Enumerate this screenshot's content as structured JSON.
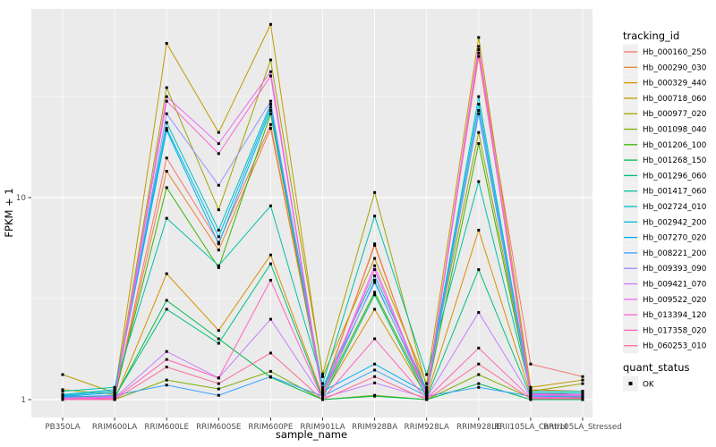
{
  "figure": {
    "background": "#FFFFFF",
    "panel_background": "#EBEBEB",
    "grid_color": "#FFFFFF",
    "tick_color": "#333333",
    "tick_label_color": "#4D4D4D",
    "axis_title_color": "#000000",
    "legend_key_fill": "#F0F0F0"
  },
  "legend": {
    "tracking_title": "tracking_id",
    "quant_title": "quant_status",
    "quant_items": [
      {
        "label": "OK",
        "marker": "black-square"
      }
    ]
  },
  "chart_data": {
    "type": "line",
    "title": "",
    "xlabel": "sample_name",
    "ylabel": "FPKM + 1",
    "y_scale": "log10",
    "y_ticks": [
      1,
      10
    ],
    "ylim": [
      0.93,
      90
    ],
    "grid": true,
    "legend_position": "right",
    "marker": {
      "shape": "square",
      "color": "#000000",
      "meaning": "quant_status OK"
    },
    "categories": [
      "PB350LA",
      "RRIM600LA",
      "RRIM600LE",
      "RRIM600SE",
      "RRIM600PE",
      "RRIM901LA",
      "RRIM928BA",
      "RRIM928LA",
      "RRIM928LE",
      "RRII105LA_Control",
      "RRII105LA_Stressed"
    ],
    "series": [
      {
        "name": "Hb_000160_250",
        "color": "#F8766D",
        "values": [
          1.05,
          1.02,
          15.7,
          6.0,
          23,
          1.08,
          5.9,
          1.08,
          54,
          1.5,
          1.3
        ]
      },
      {
        "name": "Hb_000290_030",
        "color": "#EA8331",
        "values": [
          1.04,
          1.02,
          13.5,
          5.5,
          22,
          1.1,
          5.8,
          1.1,
          50,
          1.12,
          1.1
        ]
      },
      {
        "name": "Hb_000329_440",
        "color": "#D89000",
        "values": [
          1.02,
          1.0,
          4.2,
          2.2,
          5.2,
          1.04,
          2.8,
          1.04,
          6.9,
          1.06,
          1.05
        ]
      },
      {
        "name": "Hb_000718_060",
        "color": "#C09B00",
        "values": [
          1.33,
          1.08,
          58,
          21,
          72,
          1.3,
          5.0,
          1.2,
          62,
          1.15,
          1.25
        ]
      },
      {
        "name": "Hb_000977_020",
        "color": "#A3A500",
        "values": [
          1.12,
          1.06,
          35,
          8.7,
          48,
          1.34,
          10.6,
          1.15,
          21,
          1.1,
          1.2
        ]
      },
      {
        "name": "Hb_001098_040",
        "color": "#7CAE00",
        "values": [
          1.0,
          1.0,
          1.25,
          1.13,
          1.38,
          1.0,
          1.05,
          1.0,
          1.33,
          1.02,
          1.02
        ]
      },
      {
        "name": "Hb_001206_100",
        "color": "#39B600",
        "values": [
          1.03,
          1.04,
          11.2,
          4.5,
          26,
          1.06,
          3.4,
          1.06,
          18.5,
          1.08,
          1.06
        ]
      },
      {
        "name": "Hb_001268_150",
        "color": "#00BB4E",
        "values": [
          1.0,
          1.02,
          3.1,
          2.0,
          1.29,
          1.0,
          1.04,
          1.0,
          1.2,
          1.0,
          1.0
        ]
      },
      {
        "name": "Hb_001296_060",
        "color": "#00BF7D",
        "values": [
          1.02,
          1.03,
          2.8,
          1.9,
          4.7,
          1.02,
          3.3,
          1.02,
          4.4,
          1.04,
          1.03
        ]
      },
      {
        "name": "Hb_001417_060",
        "color": "#00C1A3",
        "values": [
          1.1,
          1.15,
          7.9,
          4.6,
          9.1,
          1.2,
          8.1,
          1.33,
          12,
          1.1,
          1.1
        ]
      },
      {
        "name": "Hb_002724_010",
        "color": "#00BFC4",
        "values": [
          1.06,
          1.12,
          23.5,
          6.9,
          29,
          1.15,
          4.1,
          1.12,
          31.6,
          1.08,
          1.08
        ]
      },
      {
        "name": "Hb_002942_200",
        "color": "#00BAE0",
        "values": [
          1.05,
          1.1,
          22,
          6.4,
          28,
          1.12,
          3.8,
          1.1,
          29,
          1.06,
          1.06
        ]
      },
      {
        "name": "Hb_007270_020",
        "color": "#00B0F6",
        "values": [
          1.04,
          1.08,
          21.5,
          5.9,
          27,
          1.1,
          1.5,
          1.08,
          26,
          1.05,
          1.05
        ]
      },
      {
        "name": "Hb_008221_200",
        "color": "#35A2FF",
        "values": [
          1.03,
          1.05,
          1.18,
          1.05,
          1.3,
          1.04,
          1.4,
          1.04,
          1.15,
          1.04,
          1.04
        ]
      },
      {
        "name": "Hb_009393_090",
        "color": "#9590FF",
        "values": [
          1.02,
          1.03,
          26,
          11.5,
          30,
          1.05,
          3.9,
          1.05,
          27,
          1.05,
          1.04
        ]
      },
      {
        "name": "Hb_009421_070",
        "color": "#C77CFF",
        "values": [
          1.0,
          1.02,
          1.73,
          1.28,
          2.5,
          1.02,
          1.21,
          1.02,
          2.7,
          1.03,
          1.02
        ]
      },
      {
        "name": "Hb_009522_020",
        "color": "#E76BF3",
        "values": [
          1.01,
          1.04,
          31.6,
          18.5,
          42,
          1.06,
          4.6,
          1.06,
          56,
          1.07,
          1.06
        ]
      },
      {
        "name": "Hb_013394_120",
        "color": "#FA62DB",
        "values": [
          1.01,
          1.02,
          30,
          16.5,
          40,
          1.05,
          4.4,
          1.05,
          52,
          1.06,
          1.05
        ]
      },
      {
        "name": "Hb_017358_020",
        "color": "#FF62BC",
        "values": [
          1.0,
          1.01,
          1.58,
          1.28,
          3.9,
          1.01,
          2.0,
          1.01,
          1.8,
          1.02,
          1.02
        ]
      },
      {
        "name": "Hb_060253_010",
        "color": "#FF6A98",
        "values": [
          1.0,
          1.0,
          1.45,
          1.2,
          1.7,
          1.0,
          1.3,
          1.0,
          1.5,
          1.01,
          1.01
        ]
      }
    ]
  }
}
